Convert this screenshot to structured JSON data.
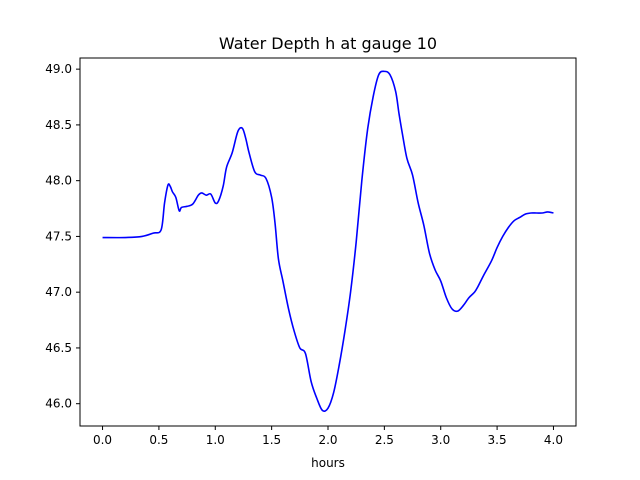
{
  "chart_data": {
    "type": "line",
    "title": "Water Depth h at gauge 10",
    "xlabel": "hours",
    "ylabel": "",
    "xlim": [
      -0.2,
      4.2
    ],
    "ylim": [
      45.8,
      49.1
    ],
    "xticks": [
      0.0,
      0.5,
      1.0,
      1.5,
      2.0,
      2.5,
      3.0,
      3.5,
      4.0
    ],
    "xtick_labels": [
      "0.0",
      "0.5",
      "1.0",
      "1.5",
      "2.0",
      "2.5",
      "3.0",
      "3.5",
      "4.0"
    ],
    "yticks": [
      46.0,
      46.5,
      47.0,
      47.5,
      48.0,
      48.5,
      49.0
    ],
    "ytick_labels": [
      "46.0",
      "46.5",
      "47.0",
      "47.5",
      "48.0",
      "48.5",
      "49.0"
    ],
    "grid": false,
    "legend": "none",
    "series": [
      {
        "color": "#0000ff",
        "x": [
          0.0,
          0.2,
          0.35,
          0.45,
          0.52,
          0.55,
          0.58,
          0.6,
          0.62,
          0.65,
          0.68,
          0.7,
          0.75,
          0.8,
          0.85,
          0.88,
          0.92,
          0.96,
          1.0,
          1.03,
          1.07,
          1.1,
          1.15,
          1.2,
          1.24,
          1.27,
          1.3,
          1.35,
          1.4,
          1.45,
          1.5,
          1.53,
          1.56,
          1.6,
          1.65,
          1.7,
          1.75,
          1.8,
          1.85,
          1.9,
          1.95,
          2.0,
          2.05,
          2.1,
          2.15,
          2.2,
          2.25,
          2.3,
          2.35,
          2.4,
          2.45,
          2.5,
          2.55,
          2.6,
          2.63,
          2.66,
          2.7,
          2.75,
          2.8,
          2.85,
          2.9,
          2.95,
          3.0,
          3.05,
          3.1,
          3.15,
          3.2,
          3.25,
          3.3,
          3.33,
          3.38,
          3.45,
          3.5,
          3.55,
          3.6,
          3.65,
          3.7,
          3.75,
          3.8,
          3.85,
          3.9,
          3.95,
          4.0
        ],
        "y": [
          47.49,
          47.49,
          47.5,
          47.53,
          47.56,
          47.8,
          47.96,
          47.95,
          47.9,
          47.85,
          47.73,
          47.76,
          47.77,
          47.79,
          47.87,
          47.89,
          47.87,
          47.88,
          47.8,
          47.82,
          47.95,
          48.12,
          48.25,
          48.44,
          48.47,
          48.38,
          48.25,
          48.08,
          48.05,
          48.02,
          47.85,
          47.62,
          47.3,
          47.1,
          46.85,
          46.65,
          46.5,
          46.45,
          46.2,
          46.05,
          45.94,
          45.96,
          46.1,
          46.35,
          46.65,
          47.0,
          47.45,
          48.0,
          48.45,
          48.75,
          48.95,
          48.98,
          48.95,
          48.8,
          48.6,
          48.42,
          48.2,
          48.05,
          47.8,
          47.6,
          47.35,
          47.2,
          47.1,
          46.95,
          46.85,
          46.83,
          46.88,
          46.95,
          47.0,
          47.05,
          47.15,
          47.28,
          47.4,
          47.5,
          47.58,
          47.64,
          47.67,
          47.7,
          47.71,
          47.71,
          47.71,
          47.72,
          47.71
        ]
      }
    ]
  }
}
